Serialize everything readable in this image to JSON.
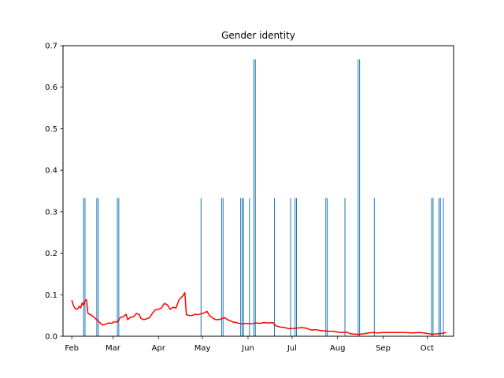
{
  "chart_data": {
    "type": "bar",
    "title": "Gender identity",
    "xlabel": "",
    "ylabel": "",
    "ylim": [
      0,
      0.7
    ],
    "xlim": [
      "2023-01-26",
      "2023-10-19"
    ],
    "yticks": [
      0.0,
      0.1,
      0.2,
      0.3,
      0.4,
      0.5,
      0.6,
      0.7
    ],
    "ytick_labels": [
      "0.0",
      "0.1",
      "0.2",
      "0.3",
      "0.4",
      "0.5",
      "0.6",
      "0.7"
    ],
    "xticks": [
      "2023-02-01",
      "2023-03-01",
      "2023-04-01",
      "2023-05-01",
      "2023-06-01",
      "2023-07-01",
      "2023-08-01",
      "2023-09-01",
      "2023-10-01"
    ],
    "xtick_labels": [
      "Feb",
      "Mar",
      "Apr",
      "May",
      "Jun",
      "Jul",
      "Aug",
      "Sep",
      "Oct"
    ],
    "grid": false,
    "colors": {
      "bars": "#1f77b4",
      "line": "#ff0000"
    },
    "series": [
      {
        "type": "bar",
        "points": [
          [
            "2023-02-09",
            0.333
          ],
          [
            "2023-02-10",
            0.333
          ],
          [
            "2023-02-18",
            0.333
          ],
          [
            "2023-02-19",
            0.333
          ],
          [
            "2023-03-04",
            0.333
          ],
          [
            "2023-03-05",
            0.333
          ],
          [
            "2023-04-30",
            0.333
          ],
          [
            "2023-05-14",
            0.333
          ],
          [
            "2023-05-15",
            0.333
          ],
          [
            "2023-05-27",
            0.333
          ],
          [
            "2023-05-28",
            0.333
          ],
          [
            "2023-05-29",
            0.333
          ],
          [
            "2023-06-02",
            0.333
          ],
          [
            "2023-06-05",
            0.667
          ],
          [
            "2023-06-06",
            0.667
          ],
          [
            "2023-06-19",
            0.333
          ],
          [
            "2023-06-30",
            0.333
          ],
          [
            "2023-07-03",
            0.333
          ],
          [
            "2023-07-04",
            0.333
          ],
          [
            "2023-07-24",
            0.333
          ],
          [
            "2023-07-25",
            0.333
          ],
          [
            "2023-08-06",
            0.333
          ],
          [
            "2023-08-15",
            0.667
          ],
          [
            "2023-08-16",
            0.667
          ],
          [
            "2023-08-26",
            0.333
          ],
          [
            "2023-10-04",
            0.333
          ],
          [
            "2023-10-05",
            0.333
          ],
          [
            "2023-10-09",
            0.333
          ],
          [
            "2023-10-10",
            0.333
          ],
          [
            "2023-10-12",
            0.333
          ]
        ]
      },
      {
        "type": "line",
        "points": [
          [
            "2023-02-01",
            0.087
          ],
          [
            "2023-02-02",
            0.075
          ],
          [
            "2023-02-03",
            0.068
          ],
          [
            "2023-02-04",
            0.065
          ],
          [
            "2023-02-05",
            0.066
          ],
          [
            "2023-02-06",
            0.072
          ],
          [
            "2023-02-07",
            0.068
          ],
          [
            "2023-02-08",
            0.08
          ],
          [
            "2023-02-09",
            0.075
          ],
          [
            "2023-02-10",
            0.086
          ],
          [
            "2023-02-11",
            0.088
          ],
          [
            "2023-02-12",
            0.055
          ],
          [
            "2023-02-13",
            0.053
          ],
          [
            "2023-02-14",
            0.052
          ],
          [
            "2023-02-16",
            0.046
          ],
          [
            "2023-02-18",
            0.04
          ],
          [
            "2023-02-20",
            0.033
          ],
          [
            "2023-02-22",
            0.027
          ],
          [
            "2023-02-24",
            0.029
          ],
          [
            "2023-02-26",
            0.032
          ],
          [
            "2023-02-28",
            0.031
          ],
          [
            "2023-03-02",
            0.035
          ],
          [
            "2023-03-04",
            0.034
          ],
          [
            "2023-03-06",
            0.045
          ],
          [
            "2023-03-08",
            0.047
          ],
          [
            "2023-03-10",
            0.053
          ],
          [
            "2023-03-11",
            0.04
          ],
          [
            "2023-03-13",
            0.046
          ],
          [
            "2023-03-15",
            0.047
          ],
          [
            "2023-03-17",
            0.055
          ],
          [
            "2023-03-19",
            0.052
          ],
          [
            "2023-03-20",
            0.043
          ],
          [
            "2023-03-22",
            0.04
          ],
          [
            "2023-03-24",
            0.042
          ],
          [
            "2023-03-26",
            0.045
          ],
          [
            "2023-03-28",
            0.056
          ],
          [
            "2023-03-30",
            0.064
          ],
          [
            "2023-04-01",
            0.065
          ],
          [
            "2023-04-03",
            0.068
          ],
          [
            "2023-04-05",
            0.079
          ],
          [
            "2023-04-07",
            0.076
          ],
          [
            "2023-04-09",
            0.065
          ],
          [
            "2023-04-11",
            0.07
          ],
          [
            "2023-04-13",
            0.068
          ],
          [
            "2023-04-15",
            0.088
          ],
          [
            "2023-04-17",
            0.095
          ],
          [
            "2023-04-19",
            0.105
          ],
          [
            "2023-04-20",
            0.052
          ],
          [
            "2023-04-22",
            0.05
          ],
          [
            "2023-04-24",
            0.05
          ],
          [
            "2023-04-26",
            0.053
          ],
          [
            "2023-04-28",
            0.052
          ],
          [
            "2023-04-30",
            0.054
          ],
          [
            "2023-05-02",
            0.056
          ],
          [
            "2023-05-04",
            0.06
          ],
          [
            "2023-05-06",
            0.049
          ],
          [
            "2023-05-08",
            0.044
          ],
          [
            "2023-05-10",
            0.04
          ],
          [
            "2023-05-12",
            0.04
          ],
          [
            "2023-05-14",
            0.042
          ],
          [
            "2023-05-16",
            0.045
          ],
          [
            "2023-05-18",
            0.04
          ],
          [
            "2023-05-20",
            0.037
          ],
          [
            "2023-05-22",
            0.034
          ],
          [
            "2023-05-24",
            0.033
          ],
          [
            "2023-05-26",
            0.031
          ],
          [
            "2023-05-28",
            0.03
          ],
          [
            "2023-05-31",
            0.031
          ],
          [
            "2023-06-03",
            0.03
          ],
          [
            "2023-06-06",
            0.032
          ],
          [
            "2023-06-09",
            0.031
          ],
          [
            "2023-06-12",
            0.033
          ],
          [
            "2023-06-15",
            0.032
          ],
          [
            "2023-06-18",
            0.033
          ],
          [
            "2023-06-20",
            0.025
          ],
          [
            "2023-06-23",
            0.022
          ],
          [
            "2023-06-26",
            0.021
          ],
          [
            "2023-06-29",
            0.018
          ],
          [
            "2023-07-02",
            0.019
          ],
          [
            "2023-07-05",
            0.02
          ],
          [
            "2023-07-08",
            0.021
          ],
          [
            "2023-07-11",
            0.019
          ],
          [
            "2023-07-14",
            0.015
          ],
          [
            "2023-07-17",
            0.016
          ],
          [
            "2023-07-20",
            0.014
          ],
          [
            "2023-07-23",
            0.013
          ],
          [
            "2023-07-26",
            0.012
          ],
          [
            "2023-07-29",
            0.012
          ],
          [
            "2023-08-01",
            0.01
          ],
          [
            "2023-08-04",
            0.009
          ],
          [
            "2023-08-07",
            0.01
          ],
          [
            "2023-08-10",
            0.006
          ],
          [
            "2023-08-13",
            0.005
          ],
          [
            "2023-08-16",
            0.005
          ],
          [
            "2023-08-19",
            0.006
          ],
          [
            "2023-08-22",
            0.008
          ],
          [
            "2023-08-25",
            0.009
          ],
          [
            "2023-08-28",
            0.008
          ],
          [
            "2023-09-01",
            0.009
          ],
          [
            "2023-09-05",
            0.009
          ],
          [
            "2023-09-09",
            0.009
          ],
          [
            "2023-09-13",
            0.009
          ],
          [
            "2023-09-17",
            0.009
          ],
          [
            "2023-09-21",
            0.008
          ],
          [
            "2023-09-25",
            0.009
          ],
          [
            "2023-09-29",
            0.008
          ],
          [
            "2023-10-02",
            0.006
          ],
          [
            "2023-10-05",
            0.005
          ],
          [
            "2023-10-08",
            0.006
          ],
          [
            "2023-10-11",
            0.007
          ],
          [
            "2023-10-14",
            0.009
          ]
        ]
      }
    ]
  }
}
